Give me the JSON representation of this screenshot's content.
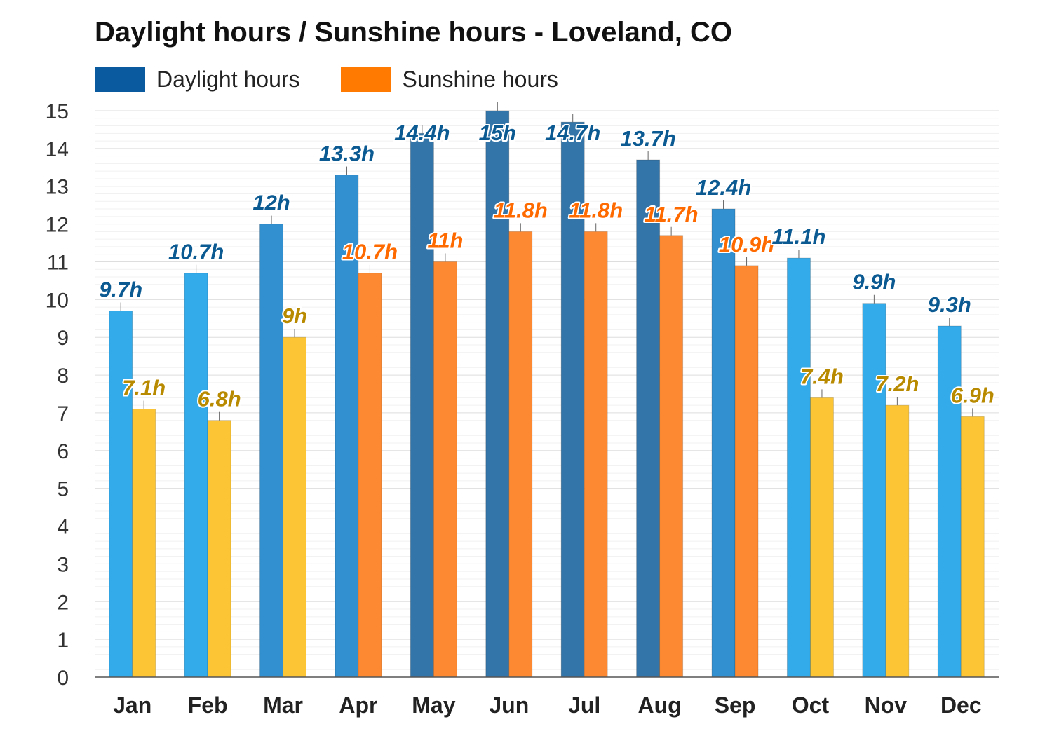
{
  "chart_data": {
    "type": "bar",
    "title": "Daylight hours / Sunshine hours - Loveland, CO",
    "categories": [
      "Jan",
      "Feb",
      "Mar",
      "Apr",
      "May",
      "Jun",
      "Jul",
      "Aug",
      "Sep",
      "Oct",
      "Nov",
      "Dec"
    ],
    "series": [
      {
        "name": "Daylight hours",
        "values": [
          9.7,
          10.7,
          12,
          13.3,
          14.4,
          15,
          14.7,
          13.7,
          12.4,
          11.1,
          9.9,
          9.3
        ],
        "labels": [
          "9.7h",
          "10.7h",
          "12h",
          "13.3h",
          "14.4h",
          "15h",
          "14.7h",
          "13.7h",
          "12.4h",
          "11.1h",
          "9.9h",
          "9.3h"
        ],
        "legend_color": "#0a5aa0"
      },
      {
        "name": "Sunshine hours",
        "values": [
          7.1,
          6.8,
          9,
          10.7,
          11,
          11.8,
          11.8,
          11.7,
          10.9,
          7.4,
          7.2,
          6.9
        ],
        "labels": [
          "7.1h",
          "6.8h",
          "9h",
          "10.7h",
          "11h",
          "11.8h",
          "11.8h",
          "11.7h",
          "10.9h",
          "7.4h",
          "7.2h",
          "6.9h"
        ],
        "legend_color": "#ff7a00"
      }
    ],
    "y_ticks": [
      "0",
      "1",
      "2",
      "3",
      "4",
      "5",
      "6",
      "7",
      "8",
      "9",
      "10",
      "11",
      "12",
      "13",
      "14",
      "15"
    ],
    "ylim": [
      0,
      15
    ],
    "grid": true,
    "legend_position": "top-left",
    "colors": {
      "daylight_light": "#33aaea",
      "daylight_mid": "#3390d0",
      "daylight_dark": "#3375a8",
      "daylight_label": "#0b5a92",
      "sunshine_light": "#fcc535",
      "sunshine_dark": "#fd8a32",
      "sunshine_label_light": "#b88a00",
      "sunshine_label_dark": "#ff6a00"
    }
  }
}
